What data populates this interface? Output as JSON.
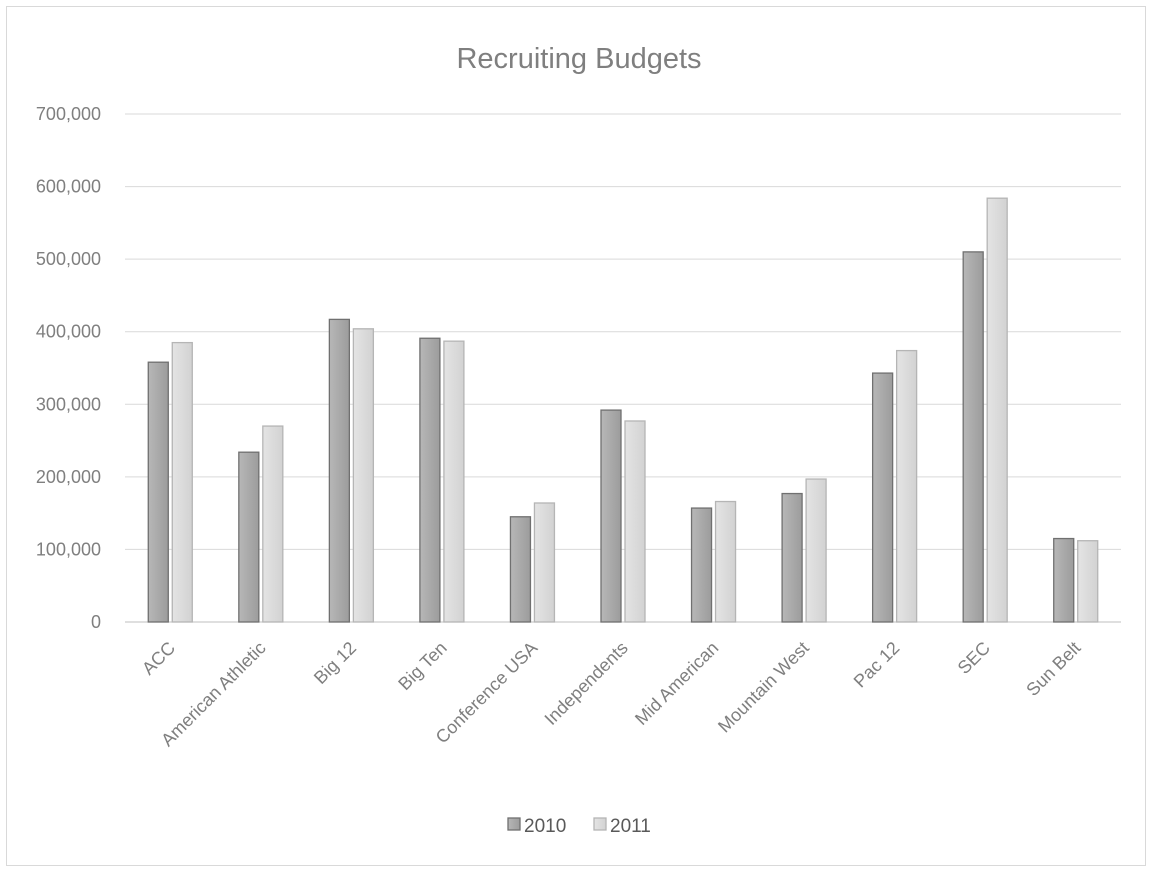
{
  "chart_data": {
    "type": "bar",
    "title": "Recruiting Budgets",
    "xlabel": "",
    "ylabel": "",
    "categories": [
      "ACC",
      "American Athletic",
      "Big 12",
      "Big Ten",
      "Conference USA",
      "Independents",
      "Mid American",
      "Mountain West",
      "Pac 12",
      "SEC",
      "Sun Belt"
    ],
    "series": [
      {
        "name": "2010",
        "values": [
          358000,
          234000,
          417000,
          391000,
          145000,
          292000,
          157000,
          177000,
          343000,
          510000,
          115000
        ],
        "color": "#a6a6a6"
      },
      {
        "name": "2011",
        "values": [
          385000,
          270000,
          404000,
          387000,
          164000,
          277000,
          166000,
          197000,
          374000,
          584000,
          112000
        ],
        "color": "#d9d9d9"
      }
    ],
    "ylim": [
      0,
      700000
    ],
    "yticks": [
      0,
      100000,
      200000,
      300000,
      400000,
      500000,
      600000,
      700000
    ],
    "ytick_labels": [
      "0",
      "100,000",
      "200,000",
      "300,000",
      "400,000",
      "500,000",
      "600,000",
      "700,000"
    ],
    "grid": true,
    "legend": "bottom"
  }
}
